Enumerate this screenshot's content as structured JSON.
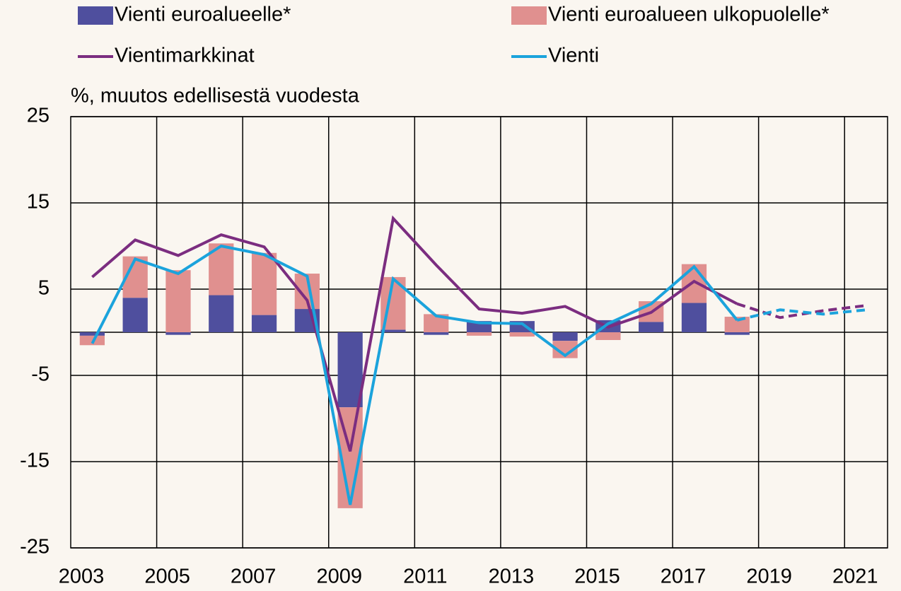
{
  "chart_data": {
    "type": "bar_line",
    "y_label": "%, muutos edellisestä vuodesta",
    "categories": [
      "2003",
      null,
      "2005",
      null,
      "2007",
      null,
      "2009",
      null,
      "2011",
      null,
      "2013",
      null,
      "2015",
      null,
      "2017",
      null,
      "2019",
      null,
      "2021"
    ],
    "ylim": [
      -25,
      25
    ],
    "yticks": [
      -25,
      -15,
      -5,
      5,
      15,
      25
    ],
    "grid": true,
    "series": [
      {
        "name": "Vienti euroalueelle*",
        "kind": "bar",
        "color": "#4f4f9e",
        "values": [
          -0.4,
          4.0,
          -0.3,
          4.3,
          2.0,
          2.7,
          -8.7,
          0.3,
          -0.3,
          1.3,
          1.3,
          -1.0,
          1.4,
          1.2,
          3.4,
          -0.3,
          null,
          null,
          null
        ]
      },
      {
        "name": "Vienti euroalueen ulkopuolelle*",
        "kind": "bar",
        "color": "#e0908f",
        "values": [
          -1.1,
          4.8,
          7.2,
          6.0,
          7.2,
          4.1,
          -11.7,
          6.1,
          2.1,
          -0.4,
          -0.5,
          -2.0,
          -0.9,
          2.4,
          4.5,
          1.8,
          null,
          null,
          null
        ]
      },
      {
        "name": "Vientimarkkinat",
        "kind": "line",
        "color": "#7b2d80",
        "dash_from_index": 15,
        "values": [
          6.4,
          10.7,
          8.9,
          11.3,
          9.9,
          3.7,
          -13.8,
          13.2,
          7.8,
          2.7,
          2.2,
          3.0,
          0.6,
          2.3,
          5.9,
          3.3,
          1.7,
          2.5,
          3.1
        ]
      },
      {
        "name": "Vienti",
        "kind": "line",
        "color": "#1ba3dc",
        "dash_from_index": 15,
        "values": [
          -1.3,
          8.5,
          6.8,
          10.0,
          9.0,
          6.5,
          -20.0,
          6.2,
          1.9,
          1.1,
          1.0,
          -2.7,
          1.0,
          3.3,
          7.6,
          1.4,
          2.6,
          2.1,
          2.6
        ]
      }
    ]
  }
}
